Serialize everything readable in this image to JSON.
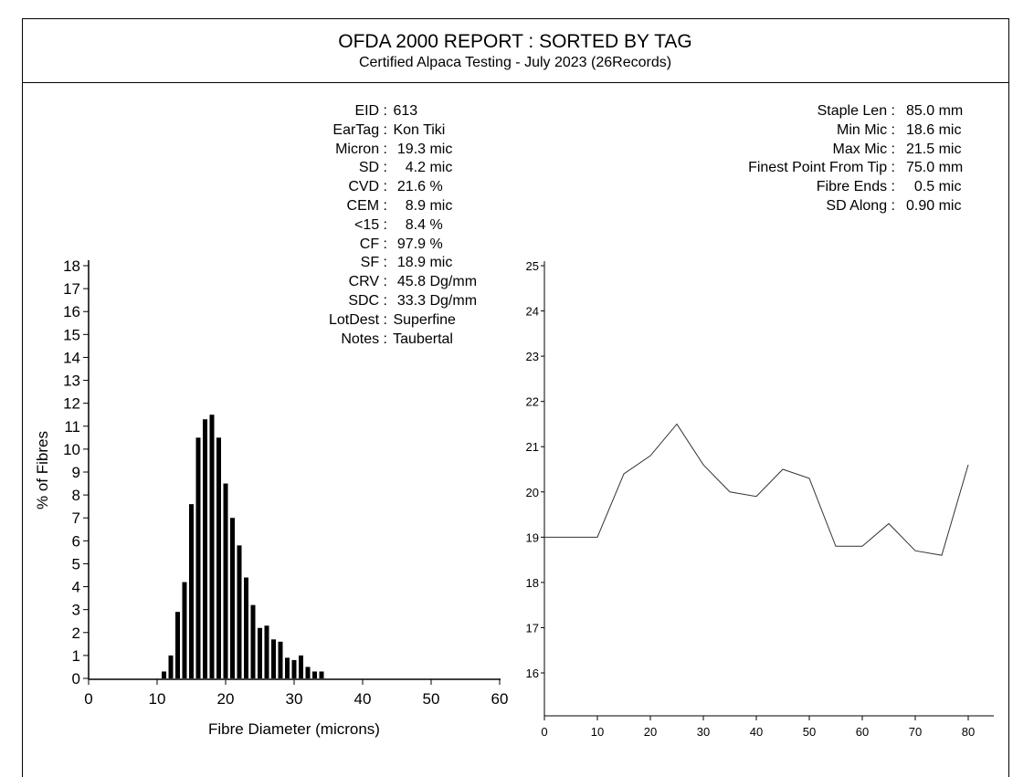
{
  "header": {
    "title": "OFDA 2000 REPORT : SORTED BY TAG",
    "subtitle": "Certified Alpaca Testing - July 2023 (26Records)"
  },
  "stats_left": [
    {
      "label": "EID :",
      "value": " 613"
    },
    {
      "label": "EarTag :",
      "value": " Kon Tiki"
    },
    {
      "label": "Micron :",
      "value": "  19.3 mic"
    },
    {
      "label": "SD :",
      "value": "    4.2 mic"
    },
    {
      "label": "CVD :",
      "value": "  21.6 %"
    },
    {
      "label": "CEM :",
      "value": "    8.9 mic"
    },
    {
      "label": "<15 :",
      "value": "    8.4 %"
    },
    {
      "label": "CF :",
      "value": "  97.9 %"
    },
    {
      "label": "SF :",
      "value": "  18.9 mic"
    },
    {
      "label": "CRV :",
      "value": "  45.8 Dg/mm"
    },
    {
      "label": "SDC :",
      "value": "  33.3 Dg/mm"
    },
    {
      "label": "LotDest :",
      "value": " Superfine"
    },
    {
      "label": "Notes :",
      "value": " Taubertal"
    }
  ],
  "stats_right": [
    {
      "label": "Staple Len :",
      "value": "85.0 mm"
    },
    {
      "label": "Min Mic :",
      "value": "18.6 mic"
    },
    {
      "label": "Max Mic :",
      "value": "21.5 mic"
    },
    {
      "label": "Finest Point From Tip :",
      "value": "75.0 mm"
    },
    {
      "label": "Fibre Ends :",
      "value": "  0.5 mic"
    },
    {
      "label": "SD Along :",
      "value": "0.90 mic"
    }
  ],
  "chart_data": [
    {
      "type": "bar",
      "title": "",
      "xlabel": "Fibre Diameter (microns)",
      "ylabel": "% of Fibres",
      "xlim": [
        0,
        60
      ],
      "ylim": [
        0,
        18
      ],
      "xticks": [
        0,
        10,
        20,
        30,
        40,
        50,
        60
      ],
      "yticks": [
        0,
        1,
        2,
        3,
        4,
        5,
        6,
        7,
        8,
        9,
        10,
        11,
        12,
        13,
        14,
        15,
        16,
        17,
        18
      ],
      "x": [
        11,
        12,
        13,
        14,
        15,
        16,
        17,
        18,
        19,
        20,
        21,
        22,
        23,
        24,
        25,
        26,
        27,
        28,
        29,
        30,
        31,
        32,
        33,
        34
      ],
      "values": [
        0.3,
        1.0,
        2.9,
        4.2,
        7.6,
        10.5,
        11.3,
        11.5,
        10.5,
        8.5,
        7.0,
        5.8,
        4.4,
        3.2,
        2.2,
        2.3,
        1.7,
        1.6,
        0.9,
        0.8,
        1.0,
        0.5,
        0.3,
        0.3
      ]
    },
    {
      "type": "line",
      "title": "",
      "xlabel": "",
      "ylabel": "",
      "xlim": [
        0,
        80
      ],
      "ylim": [
        15.1,
        25
      ],
      "xticks": [
        0,
        10,
        20,
        30,
        40,
        50,
        60,
        70,
        80
      ],
      "yticks": [
        16,
        17,
        18,
        19,
        20,
        21,
        22,
        23,
        24,
        25
      ],
      "x": [
        0,
        5,
        10,
        15,
        20,
        25,
        30,
        35,
        40,
        45,
        50,
        55,
        60,
        65,
        70,
        75,
        80
      ],
      "values": [
        19.0,
        19.0,
        19.0,
        20.4,
        20.8,
        21.5,
        20.6,
        20.0,
        19.9,
        20.5,
        20.3,
        18.8,
        18.8,
        19.3,
        18.7,
        18.6,
        20.6
      ]
    }
  ]
}
